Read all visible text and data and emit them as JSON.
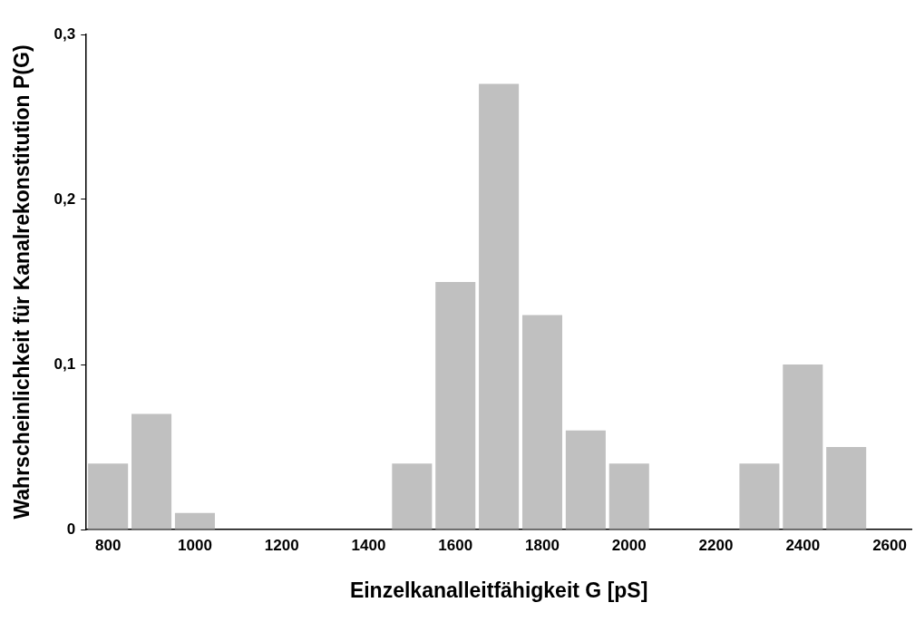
{
  "chart_data": {
    "type": "histogram",
    "xlabel": "Einzelkanalleitfähigkeit G [pS]",
    "ylabel": "Wahrscheinlichkeit für Kanalrekonstitution P(G)",
    "bins": [
      750,
      850,
      950,
      1050,
      1150,
      1250,
      1350,
      1450,
      1550,
      1650,
      1750,
      1850,
      1950,
      2050,
      2150,
      2250,
      2350,
      2450,
      2550
    ],
    "values": [
      0.04,
      0.07,
      0.01,
      0,
      0,
      0,
      0,
      0.04,
      0.15,
      0.27,
      0.13,
      0.06,
      0.04,
      0,
      0,
      0.04,
      0.1,
      0.05
    ],
    "color": "#c0c0c0",
    "xlim": [
      750,
      2650
    ],
    "xticks": [
      800,
      1000,
      1200,
      1400,
      1600,
      1800,
      2000,
      2200,
      2400,
      2600
    ],
    "ylim": [
      0,
      0.3
    ],
    "yticks": [
      0,
      {
        "value": 0.1,
        "label": "0,1"
      },
      {
        "value": 0.2,
        "label": "0,2"
      },
      {
        "value": 0.3,
        "label": "0,3"
      }
    ],
    "grid": false,
    "legend": false
  }
}
